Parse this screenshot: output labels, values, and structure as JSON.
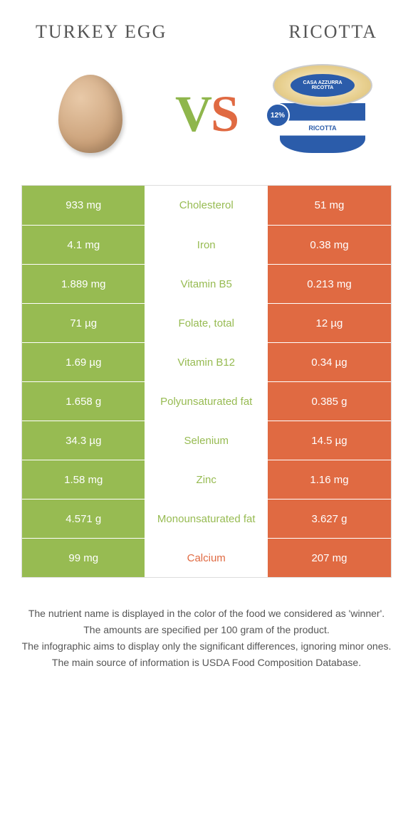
{
  "colors": {
    "green": "#97bb52",
    "orange": "#e06a42",
    "mid_bg": "#ffffff",
    "row_border": "#eeeeee"
  },
  "header": {
    "left_title": "TURKEY EGG",
    "right_title": "RICOTTA",
    "vs_v": "V",
    "vs_s": "S",
    "ricotta_brand": "CASA AZZURRA",
    "ricotta_label": "RICOTTA",
    "ricotta_badge": "12%"
  },
  "rows": [
    {
      "left": "933 mg",
      "label": "Cholesterol",
      "right": "51 mg",
      "winner": "left"
    },
    {
      "left": "4.1 mg",
      "label": "Iron",
      "right": "0.38 mg",
      "winner": "left"
    },
    {
      "left": "1.889 mg",
      "label": "Vitamin B5",
      "right": "0.213 mg",
      "winner": "left"
    },
    {
      "left": "71 µg",
      "label": "Folate, total",
      "right": "12 µg",
      "winner": "left"
    },
    {
      "left": "1.69 µg",
      "label": "Vitamin B12",
      "right": "0.34 µg",
      "winner": "left"
    },
    {
      "left": "1.658 g",
      "label": "Polyunsaturated fat",
      "right": "0.385 g",
      "winner": "left"
    },
    {
      "left": "34.3 µg",
      "label": "Selenium",
      "right": "14.5 µg",
      "winner": "left"
    },
    {
      "left": "1.58 mg",
      "label": "Zinc",
      "right": "1.16 mg",
      "winner": "left"
    },
    {
      "left": "4.571 g",
      "label": "Monounsaturated fat",
      "right": "3.627 g",
      "winner": "left"
    },
    {
      "left": "99 mg",
      "label": "Calcium",
      "right": "207 mg",
      "winner": "right"
    }
  ],
  "notes": [
    "The nutrient name is displayed in the color of the food we considered as 'winner'.",
    "The amounts are specified per 100 gram of the product.",
    "The infographic aims to display only the significant differences, ignoring minor ones.",
    "The main source of information is USDA Food Composition Database."
  ]
}
